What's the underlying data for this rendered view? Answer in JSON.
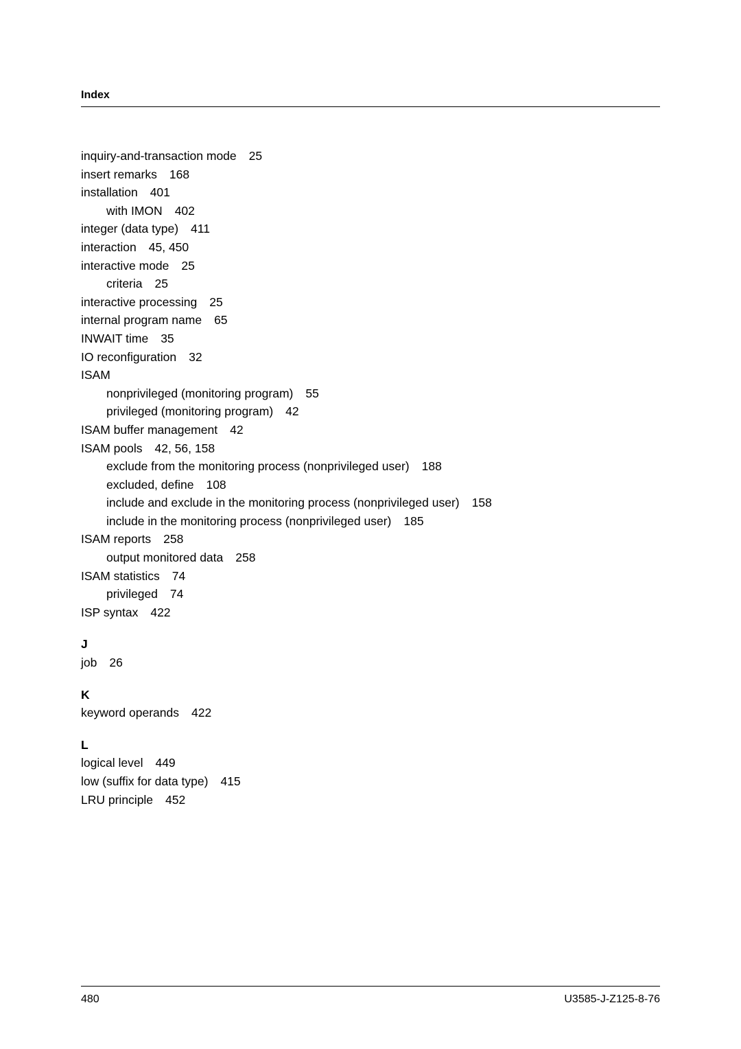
{
  "header": "Index",
  "entries": [
    {
      "text": "inquiry-and-transaction mode",
      "pages": "25",
      "indent": 0
    },
    {
      "text": "insert remarks",
      "pages": "168",
      "indent": 0
    },
    {
      "text": "installation",
      "pages": "401",
      "indent": 0
    },
    {
      "text": "with IMON",
      "pages": "402",
      "indent": 1
    },
    {
      "text": "integer (data type)",
      "pages": "411",
      "indent": 0
    },
    {
      "text": "interaction",
      "pages": "45, 450",
      "indent": 0
    },
    {
      "text": "interactive mode",
      "pages": "25",
      "indent": 0
    },
    {
      "text": "criteria",
      "pages": "25",
      "indent": 1
    },
    {
      "text": "interactive processing",
      "pages": "25",
      "indent": 0
    },
    {
      "text": "internal program name",
      "pages": "65",
      "indent": 0
    },
    {
      "text": "INWAIT time",
      "pages": "35",
      "indent": 0
    },
    {
      "text": "IO reconfiguration",
      "pages": "32",
      "indent": 0
    },
    {
      "text": "ISAM",
      "pages": "",
      "indent": 0
    },
    {
      "text": "nonprivileged (monitoring program)",
      "pages": "55",
      "indent": 1
    },
    {
      "text": "privileged (monitoring program)",
      "pages": "42",
      "indent": 1
    },
    {
      "text": "ISAM buffer management",
      "pages": "42",
      "indent": 0
    },
    {
      "text": "ISAM pools",
      "pages": "42, 56, 158",
      "indent": 0
    },
    {
      "text": "exclude from the monitoring process (nonprivileged user)",
      "pages": "188",
      "indent": 1
    },
    {
      "text": "excluded, define",
      "pages": "108",
      "indent": 1
    },
    {
      "text": "include and exclude in the monitoring process (nonprivileged user)",
      "pages": "158",
      "indent": 1
    },
    {
      "text": "include in the monitoring process (nonprivileged user)",
      "pages": "185",
      "indent": 1
    },
    {
      "text": "ISAM reports",
      "pages": "258",
      "indent": 0
    },
    {
      "text": "output monitored data",
      "pages": "258",
      "indent": 1
    },
    {
      "text": "ISAM statistics",
      "pages": "74",
      "indent": 0
    },
    {
      "text": "privileged",
      "pages": "74",
      "indent": 1
    },
    {
      "text": "ISP syntax",
      "pages": "422",
      "indent": 0
    }
  ],
  "section_j": {
    "letter": "J",
    "entries": [
      {
        "text": "job",
        "pages": "26",
        "indent": 0
      }
    ]
  },
  "section_k": {
    "letter": "K",
    "entries": [
      {
        "text": "keyword operands",
        "pages": "422",
        "indent": 0
      }
    ]
  },
  "section_l": {
    "letter": "L",
    "entries": [
      {
        "text": "logical level",
        "pages": "449",
        "indent": 0
      },
      {
        "text": "low (suffix for data type)",
        "pages": "415",
        "indent": 0
      },
      {
        "text": "LRU principle",
        "pages": "452",
        "indent": 0
      }
    ]
  },
  "footer": {
    "page_number": "480",
    "doc_id": "U3585-J-Z125-8-76"
  }
}
